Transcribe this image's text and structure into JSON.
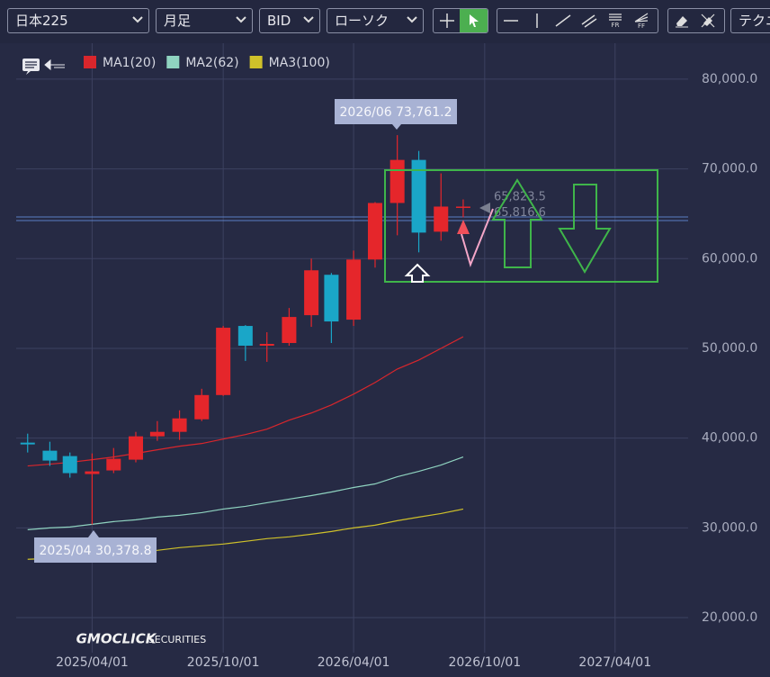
{
  "toolbar": {
    "symbol": "日本225",
    "period": "月足",
    "price_type": "BID",
    "chart_style": "ローソク",
    "technical": "テクニ"
  },
  "chart_data": {
    "type": "candlestick",
    "x": [
      "2025/01/01",
      "2025/02/01",
      "2025/03/01",
      "2025/04/01",
      "2025/05/01",
      "2025/06/01",
      "2025/07/01",
      "2025/08/01",
      "2025/09/01",
      "2025/10/01",
      "2025/11/01",
      "2025/12/01",
      "2026/01/01",
      "2026/02/01",
      "2026/03/01",
      "2026/04/01",
      "2026/05/01",
      "2026/06/01",
      "2026/07/01",
      "2026/08/01",
      "2026/09/01"
    ],
    "open": [
      39500,
      38600,
      38000,
      36000,
      36400,
      37600,
      40200,
      40700,
      42100,
      44800,
      52500,
      50300,
      50600,
      53700,
      58200,
      53200,
      59900,
      66200,
      71000,
      63000,
      65800
    ],
    "high": [
      40500,
      39600,
      38400,
      38300,
      38900,
      40700,
      41900,
      43100,
      45500,
      52500,
      52600,
      51800,
      54500,
      60000,
      58400,
      60900,
      66300,
      73761.2,
      72000,
      69500,
      66600
    ],
    "low": [
      38400,
      36900,
      35600,
      30378.8,
      36100,
      37300,
      39700,
      39800,
      41900,
      44700,
      48600,
      48500,
      50300,
      52400,
      50600,
      52500,
      59000,
      62600,
      60700,
      62000,
      64600
    ],
    "close": [
      39300,
      37500,
      36100,
      36300,
      37700,
      40200,
      40700,
      42200,
      44800,
      52300,
      50300,
      50500,
      53500,
      58700,
      53000,
      59900,
      66200,
      71000,
      62900,
      65800,
      65800
    ],
    "up_color": "#e5262b",
    "down_color": "#1aa6c8",
    "series": [
      {
        "name": "MA1(20)",
        "color": "#d9262c",
        "values": [
          36900,
          37100,
          37300,
          37600,
          37900,
          38300,
          38700,
          39100,
          39400,
          39900,
          40400,
          41000,
          42000,
          42800,
          43700,
          44900,
          46200,
          47700,
          48700,
          50000,
          51300
        ]
      },
      {
        "name": "MA2(62)",
        "color": "#8fd3c0",
        "values": [
          29800,
          30000,
          30100,
          30400,
          30700,
          30900,
          31200,
          31400,
          31700,
          32100,
          32400,
          32800,
          33200,
          33600,
          34000,
          34500,
          34900,
          35700,
          36300,
          37000,
          37900
        ]
      },
      {
        "name": "MA3(100)",
        "color": "#cfc12a",
        "values": [
          26500,
          26600,
          26800,
          26900,
          27100,
          27300,
          27500,
          27800,
          28000,
          28200,
          28500,
          28800,
          29000,
          29300,
          29600,
          30000,
          30300,
          30800,
          31200,
          31600,
          32100
        ]
      }
    ],
    "annotations": [
      "2026/06 73,761.2",
      "2025/04 30,378.8"
    ],
    "price_markers": [
      {
        "value": 65823.5,
        "label": "65,823.5"
      },
      {
        "value": 65816.6,
        "label": "65,816.6"
      }
    ],
    "hlines": [
      64640,
      64240
    ],
    "hline_color": "#5b7fc4",
    "xlim": [
      "2024/12/16",
      "2027/07/12"
    ],
    "xticks": [
      "2025/04/01",
      "2025/10/01",
      "2026/04/01",
      "2026/10/01",
      "2027/04/01"
    ],
    "ylim": [
      18100,
      83300
    ],
    "yticks": [
      {
        "value": 20000,
        "label": "20,000.0"
      },
      {
        "value": 30000,
        "label": "30,000.0"
      },
      {
        "value": 40000,
        "label": "40,000.0"
      },
      {
        "value": 50000,
        "label": "50,000.0"
      },
      {
        "value": 60000,
        "label": "60,000.0"
      },
      {
        "value": 70000,
        "label": "70,000.0"
      },
      {
        "value": 80000,
        "label": "80,000.0"
      }
    ],
    "grid": true,
    "brand": "GMOCLICK",
    "brand_sub": "SECURITIES"
  }
}
